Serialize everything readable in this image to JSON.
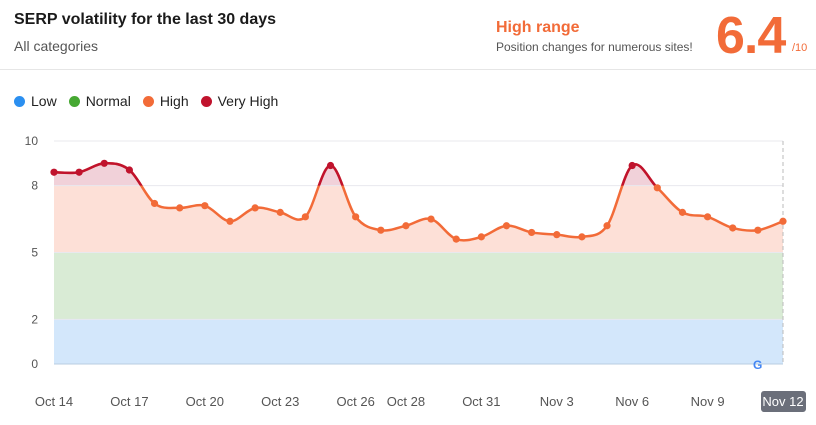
{
  "header": {
    "title": "SERP volatility for the last 30 days",
    "subtitle": "All categories",
    "range_label": "High range",
    "range_desc": "Position changes for numerous sites!",
    "score": "6.4",
    "score_max": "/10"
  },
  "legend": [
    {
      "label": "Low",
      "color": "#2b8ff0"
    },
    {
      "label": "Normal",
      "color": "#46a832"
    },
    {
      "label": "High",
      "color": "#f26b38"
    },
    {
      "label": "Very High",
      "color": "#c0132d"
    }
  ],
  "chart_data": {
    "type": "area",
    "title": "SERP volatility for the last 30 days",
    "ylim": [
      0,
      10
    ],
    "yticks": [
      0,
      2,
      5,
      8,
      10
    ],
    "bands": [
      {
        "name": "Low",
        "from": 0,
        "to": 2,
        "color": "#d3e7fb"
      },
      {
        "name": "Normal",
        "from": 2,
        "to": 5,
        "color": "#d9ebd5"
      },
      {
        "name": "High",
        "from": 5,
        "to": 8,
        "color": "#fde0d7"
      },
      {
        "name": "Very High",
        "from": 8,
        "to": 10,
        "color": "#f1d1d9"
      }
    ],
    "x": [
      "Oct 14",
      "Oct 15",
      "Oct 16",
      "Oct 17",
      "Oct 18",
      "Oct 19",
      "Oct 20",
      "Oct 21",
      "Oct 22",
      "Oct 23",
      "Oct 24",
      "Oct 25",
      "Oct 26",
      "Oct 27",
      "Oct 28",
      "Oct 29",
      "Oct 30",
      "Oct 31",
      "Nov 1",
      "Nov 2",
      "Nov 3",
      "Nov 4",
      "Nov 5",
      "Nov 6",
      "Nov 7",
      "Nov 8",
      "Nov 9",
      "Nov 10",
      "Nov 11",
      "Nov 12"
    ],
    "values": [
      8.6,
      8.6,
      9.0,
      8.7,
      7.2,
      7.0,
      7.1,
      6.4,
      7.0,
      6.8,
      6.6,
      8.9,
      6.6,
      6.0,
      6.2,
      6.5,
      5.6,
      5.7,
      6.2,
      5.9,
      5.8,
      5.7,
      6.2,
      8.9,
      7.9,
      6.8,
      6.6,
      6.1,
      6.0,
      6.4
    ],
    "xticks": [
      {
        "index": 0,
        "label": "Oct 14"
      },
      {
        "index": 3,
        "label": "Oct 17"
      },
      {
        "index": 6,
        "label": "Oct 20"
      },
      {
        "index": 9,
        "label": "Oct 23"
      },
      {
        "index": 12,
        "label": "Oct 26"
      },
      {
        "index": 14,
        "label": "Oct 28"
      },
      {
        "index": 17,
        "label": "Oct 31"
      },
      {
        "index": 20,
        "label": "Nov 3"
      },
      {
        "index": 23,
        "label": "Nov 6"
      },
      {
        "index": 26,
        "label": "Nov 9"
      },
      {
        "index": 29,
        "label": "Nov 12"
      }
    ],
    "highlight_label": "Nov 12",
    "line_colors": {
      "high": "#f26b38",
      "very_high": "#c0132d"
    }
  }
}
